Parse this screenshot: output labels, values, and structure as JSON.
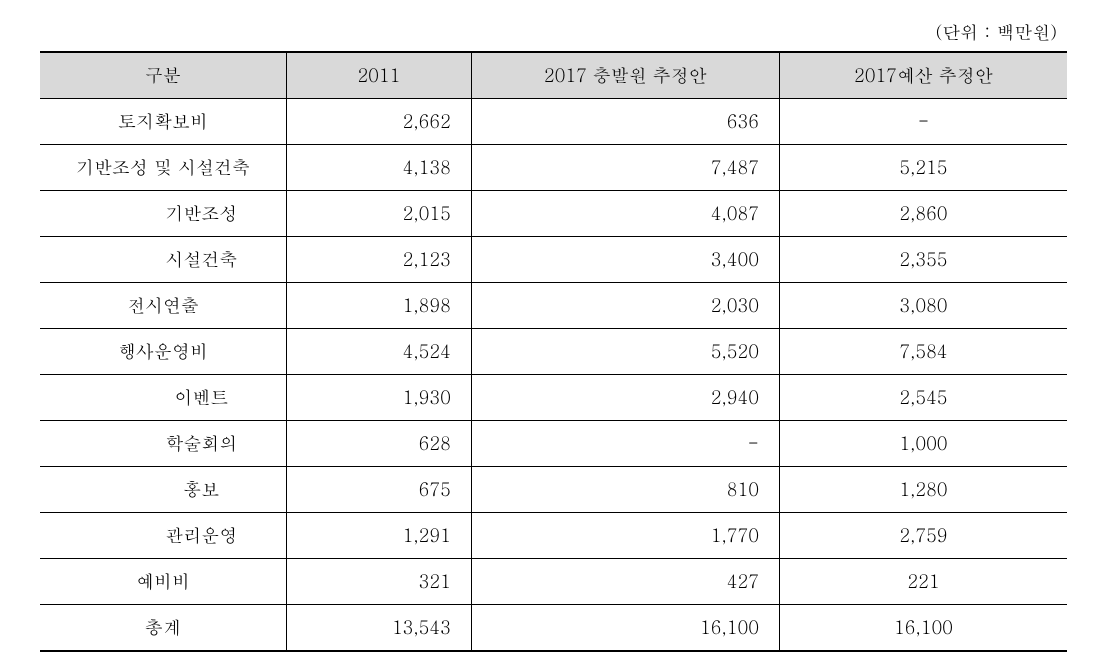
{
  "unit_label": "(단위  :  백만원)",
  "headers": {
    "category": "구분",
    "year_2011": "2011",
    "estimate_1": "2017 충발원 추정안",
    "estimate_2": "2017예산 추정안"
  },
  "rows": [
    {
      "label": "토지확보비",
      "c1": "2,662",
      "c2": "636",
      "c3": "-",
      "sub": false
    },
    {
      "label": "기반조성 및 시설건축",
      "c1": "4,138",
      "c2": "7,487",
      "c3": "5,215",
      "sub": false
    },
    {
      "label": "기반조성",
      "c1": "2,015",
      "c2": "4,087",
      "c3": "2,860",
      "sub": true
    },
    {
      "label": "시설건축",
      "c1": "2,123",
      "c2": "3,400",
      "c3": "2,355",
      "sub": true
    },
    {
      "label": "전시연출",
      "c1": "1,898",
      "c2": "2,030",
      "c3": "3,080",
      "sub": false
    },
    {
      "label": "행사운영비",
      "c1": "4,524",
      "c2": "5,520",
      "c3": "7,584",
      "sub": false
    },
    {
      "label": "이벤트",
      "c1": "1,930",
      "c2": "2,940",
      "c3": "2,545",
      "sub": true
    },
    {
      "label": "학술회의",
      "c1": "628",
      "c2": "-",
      "c3": "1,000",
      "sub": true
    },
    {
      "label": "홍보",
      "c1": "675",
      "c2": "810",
      "c3": "1,280",
      "sub": true
    },
    {
      "label": "관리운영",
      "c1": "1,291",
      "c2": "1,770",
      "c3": "2,759",
      "sub": true
    },
    {
      "label": "예비비",
      "c1": "321",
      "c2": "427",
      "c3": "221",
      "sub": false
    },
    {
      "label": "총계",
      "c1": "13,543",
      "c2": "16,100",
      "c3": "16,100",
      "sub": false,
      "total": true
    }
  ],
  "table_styles": {
    "header_bg": "#d9d9d9",
    "border_color": "#000000",
    "font_size": 18,
    "col_widths": [
      "24%",
      "18%",
      "30%",
      "28%"
    ]
  }
}
